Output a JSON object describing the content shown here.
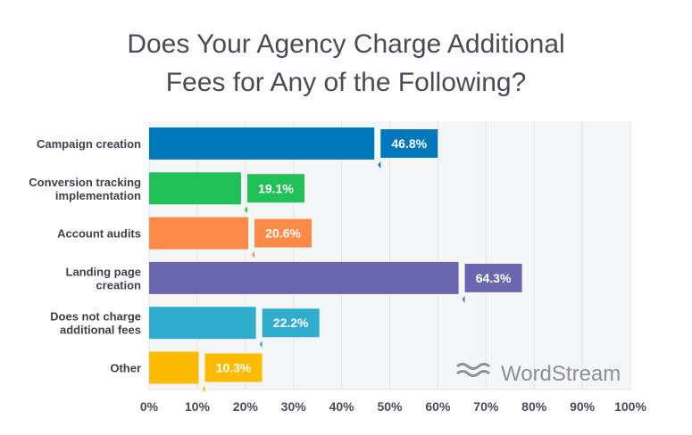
{
  "chart_data": {
    "type": "bar",
    "orientation": "horizontal",
    "title": "Does Your Agency Charge Additional Fees for Any of the Following?",
    "title_lines": [
      "Does Your Agency Charge Additional",
      "Fees for Any of the Following?"
    ],
    "categories": [
      [
        "Campaign creation"
      ],
      [
        "Conversion tracking",
        "implementation"
      ],
      [
        "Account audits"
      ],
      [
        "Landing page",
        "creation"
      ],
      [
        "Does not charge",
        "additional fees"
      ],
      [
        "Other"
      ]
    ],
    "values": [
      46.8,
      19.1,
      20.6,
      64.3,
      22.2,
      10.3
    ],
    "data_labels": [
      "46.8%",
      "19.1%",
      "20.6%",
      "64.3%",
      "22.2%",
      "10.3%"
    ],
    "colors": [
      "#0079bc",
      "#22c059",
      "#fe8a47",
      "#6a67b0",
      "#30accd",
      "#fdbb00"
    ],
    "xlim": [
      0,
      100
    ],
    "xticks": [
      "0%",
      "10%",
      "20%",
      "30%",
      "40%",
      "50%",
      "60%",
      "70%",
      "80%",
      "90%",
      "100%"
    ],
    "grid": true,
    "xlabel": "",
    "ylabel": ""
  },
  "watermark": "WordStream"
}
